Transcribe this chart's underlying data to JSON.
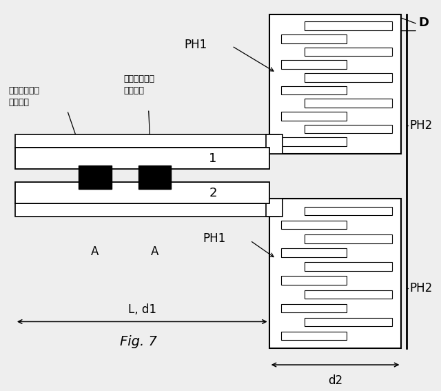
{
  "bg_color": "#eeeeee",
  "fig_label": "Fig. 7",
  "label_1": "1",
  "label_2": "2",
  "label_D": "D",
  "label_PH1": "PH1",
  "label_PH2": "PH2",
  "label_A": "A",
  "label_Ld1": "L, d1",
  "label_d2": "d2",
  "label_resonator": "共振器部分の\nアンカー",
  "label_electrode": "対電極部分の\nアンカー"
}
